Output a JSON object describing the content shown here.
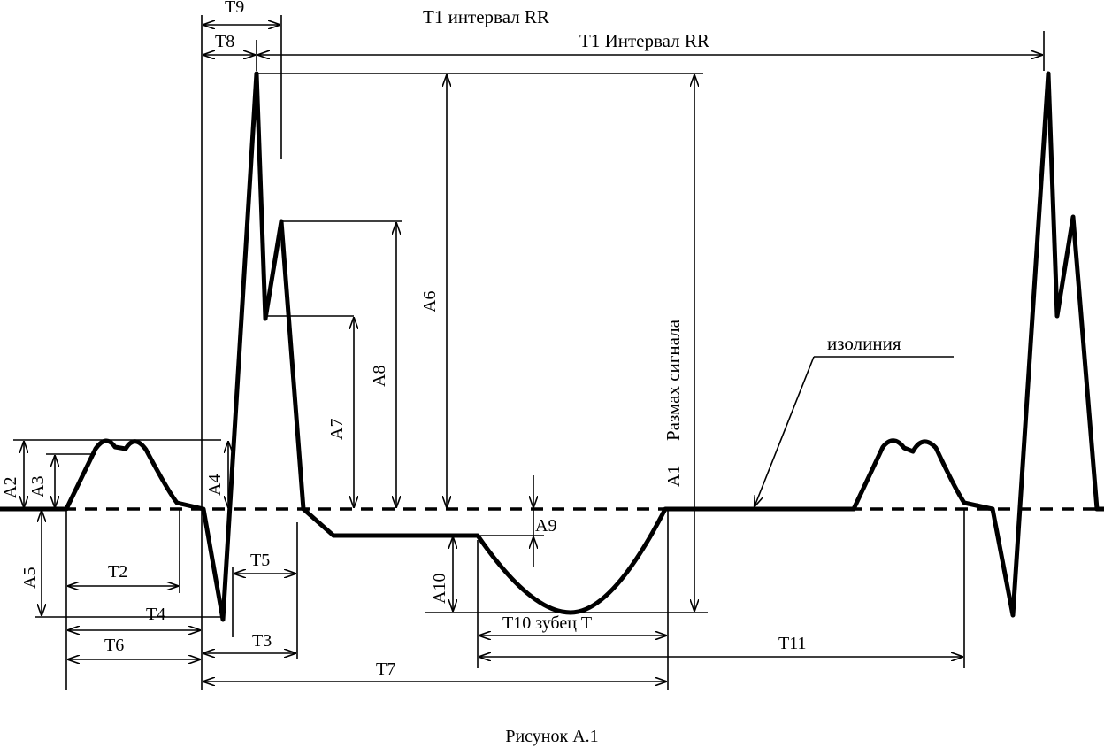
{
  "figure": {
    "caption": "Рисунок А.1",
    "isoline_label": "изолиния",
    "signal_range_label": "Размах сигнала",
    "rr_top_label": "Т1 интервал RR",
    "rr_label": "Т1  Интервал RR",
    "t_wave_label": "Т10 зубец Т",
    "time_labels": {
      "t2": "Т2",
      "t3": "Т3",
      "t4": "Т4",
      "t5": "Т5",
      "t6": "Т6",
      "t7": "Т7",
      "t8": "Т8",
      "t9": "Т9",
      "t11": "Т11"
    },
    "amp_labels": {
      "a1": "А1",
      "a2": "А2",
      "a3": "А3",
      "a4": "А4",
      "a5": "А5",
      "a6": "А6",
      "a7": "А7",
      "a8": "А8",
      "a9": "А9",
      "a10": "А10"
    }
  }
}
